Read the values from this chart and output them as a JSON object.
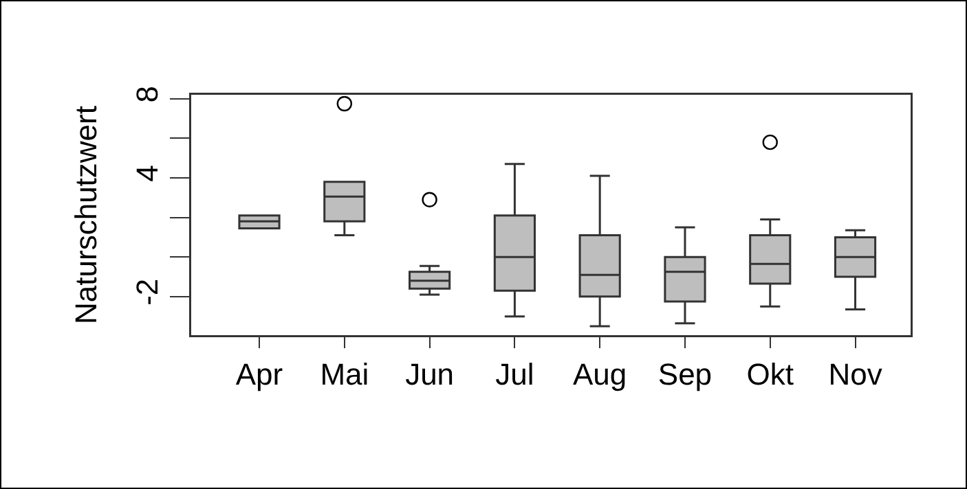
{
  "chart_data": {
    "type": "box",
    "ylabel": "Naturschutzwert",
    "categories": [
      "Apr",
      "Mai",
      "Jun",
      "Jul",
      "Aug",
      "Sep",
      "Okt",
      "Nov"
    ],
    "color": "#bebebe",
    "boxes": [
      {
        "low": 1.45,
        "q1": 1.45,
        "median": 1.8,
        "q3": 2.1,
        "high": 2.1
      },
      {
        "low": 1.1,
        "q1": 1.8,
        "median": 3.05,
        "q3": 3.8,
        "high": 3.8,
        "outliers": [
          7.75
        ]
      },
      {
        "low": -1.9,
        "q1": -1.6,
        "median": -1.2,
        "q3": -0.75,
        "high": -0.45,
        "outliers": [
          2.9
        ]
      },
      {
        "low": -3,
        "q1": -1.7,
        "median": 0,
        "q3": 2.1,
        "high": 4.7
      },
      {
        "low": -3.5,
        "q1": -2,
        "median": -0.9,
        "q3": 1.1,
        "high": 4.1
      },
      {
        "low": -3.35,
        "q1": -2.25,
        "median": -0.75,
        "q3": 0,
        "high": 1.5
      },
      {
        "low": -2.5,
        "q1": -1.35,
        "median": -0.35,
        "q3": 1.1,
        "high": 1.9,
        "outliers": [
          5.8
        ]
      },
      {
        "low": -2.65,
        "q1": -1,
        "median": 0,
        "q3": 1,
        "high": 1.35
      }
    ],
    "ylim": [
      -3.95,
      8.2
    ],
    "yticks": [
      -2,
      {
        "value": 0,
        "label": null
      },
      {
        "value": 2,
        "label": null
      },
      4,
      {
        "value": 6,
        "label": null
      },
      8
    ],
    "grid": false,
    "marker": "circle"
  }
}
